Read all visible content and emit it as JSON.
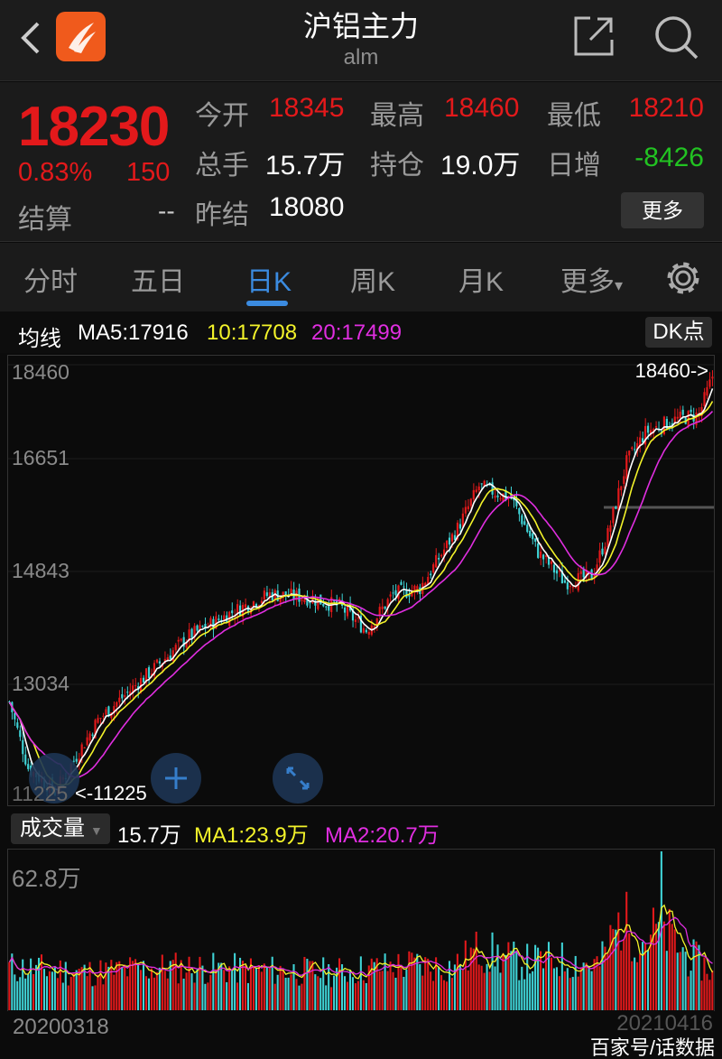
{
  "header": {
    "title": "沪铝主力",
    "code": "alm",
    "logo_color": "#f05a1c"
  },
  "quote": {
    "price": "18230",
    "change_pct": "0.83%",
    "change": "150",
    "settle_label": "结算",
    "settle_value": "--",
    "fields": [
      {
        "label": "今开",
        "value": "18345",
        "color": "#e3191b"
      },
      {
        "label": "最高",
        "value": "18460",
        "color": "#e3191b"
      },
      {
        "label": "最低",
        "value": "18210",
        "color": "#e3191b"
      },
      {
        "label": "总手",
        "value": "15.7万",
        "color": "#ffffff"
      },
      {
        "label": "持仓",
        "value": "19.0万",
        "color": "#ffffff"
      },
      {
        "label": "日增",
        "value": "-8426",
        "color": "#22c322"
      },
      {
        "label": "昨结",
        "value": "18080",
        "color": "#ffffff"
      }
    ],
    "more_button": "更多"
  },
  "tabs": [
    {
      "label": "分时"
    },
    {
      "label": "五日"
    },
    {
      "label": "日K",
      "active": true
    },
    {
      "label": "周K"
    },
    {
      "label": "月K"
    },
    {
      "label": "更多"
    }
  ],
  "ma_legend": {
    "label": "均线",
    "ma5": "MA5:17916",
    "ma10": "10:17708",
    "ma20": "20:17499",
    "dk_button": "DK点"
  },
  "volume_legend": {
    "selector": "成交量",
    "value": "15.7万",
    "ma1": "MA1:23.9万",
    "ma2": "MA2:20.7万"
  },
  "colors": {
    "up": "#e3191b",
    "down": "#3fd3d6",
    "ma5": "#ffffff",
    "ma10": "#f3f32a",
    "ma20": "#e02ee0",
    "accent": "#3b8be0"
  },
  "chart_data": {
    "type": "candlestick",
    "y_ticks": [
      "18460",
      "16651",
      "14843",
      "13034",
      "11225"
    ],
    "ylim": [
      11225,
      18460
    ],
    "max_marker": "18460->",
    "min_marker": "<-11225",
    "x_start": "20200318",
    "x_end": "20210416",
    "close_path": [
      [
        0,
        12800
      ],
      [
        7,
        11700
      ],
      [
        17,
        11300
      ],
      [
        33,
        12500
      ],
      [
        50,
        13200
      ],
      [
        67,
        13900
      ],
      [
        83,
        14300
      ],
      [
        97,
        14600
      ],
      [
        110,
        14550
      ],
      [
        123,
        14400
      ],
      [
        133,
        14000
      ],
      [
        143,
        14600
      ],
      [
        153,
        14700
      ],
      [
        167,
        15700
      ],
      [
        175,
        16400
      ],
      [
        187,
        16200
      ],
      [
        197,
        15300
      ],
      [
        207,
        14800
      ],
      [
        217,
        14900
      ],
      [
        223,
        15600
      ],
      [
        230,
        16800
      ],
      [
        237,
        17300
      ],
      [
        247,
        17500
      ],
      [
        257,
        17600
      ],
      [
        262,
        18230
      ]
    ],
    "volume_max": "62.8万",
    "volume_path": [
      [
        0,
        17
      ],
      [
        30,
        15
      ],
      [
        60,
        17
      ],
      [
        90,
        16
      ],
      [
        120,
        15
      ],
      [
        150,
        18
      ],
      [
        165,
        17
      ],
      [
        175,
        24
      ],
      [
        190,
        19
      ],
      [
        205,
        20
      ],
      [
        220,
        18
      ],
      [
        228,
        36
      ],
      [
        236,
        28
      ],
      [
        243,
        33
      ],
      [
        252,
        22
      ],
      [
        262,
        15.7
      ]
    ]
  },
  "watermark": "百家号/话数据"
}
